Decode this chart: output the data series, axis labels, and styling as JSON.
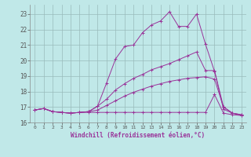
{
  "background_color": "#c0e8e8",
  "grid_color": "#99bbbb",
  "line_color": "#993399",
  "xlabel": "Windchill (Refroidissement éolien,°C)",
  "xlim": [
    -0.5,
    23.5
  ],
  "ylim": [
    16.0,
    23.6
  ],
  "yticks": [
    16,
    17,
    18,
    19,
    20,
    21,
    22,
    23
  ],
  "xticks": [
    0,
    1,
    2,
    3,
    4,
    5,
    6,
    7,
    8,
    9,
    10,
    11,
    12,
    13,
    14,
    15,
    16,
    17,
    18,
    19,
    20,
    21,
    22,
    23
  ],
  "series": [
    {
      "x": [
        0,
        1,
        2,
        3,
        4,
        5,
        6,
        7,
        8,
        9,
        10,
        11,
        12,
        13,
        14,
        15,
        16,
        17,
        18,
        19,
        20,
        21,
        22,
        23
      ],
      "y": [
        16.8,
        16.9,
        16.7,
        16.65,
        16.6,
        16.65,
        16.7,
        17.05,
        18.55,
        20.1,
        20.9,
        21.0,
        21.8,
        22.3,
        22.55,
        23.15,
        22.2,
        22.2,
        23.0,
        21.05,
        19.3,
        16.85,
        16.6,
        16.5
      ]
    },
    {
      "x": [
        0,
        1,
        2,
        3,
        4,
        5,
        6,
        7,
        8,
        9,
        10,
        11,
        12,
        13,
        14,
        15,
        16,
        17,
        18,
        19,
        20,
        21,
        22,
        23
      ],
      "y": [
        16.8,
        16.9,
        16.7,
        16.65,
        16.6,
        16.65,
        16.7,
        17.05,
        17.5,
        18.1,
        18.5,
        18.85,
        19.1,
        19.4,
        19.6,
        19.8,
        20.05,
        20.3,
        20.55,
        19.35,
        19.35,
        17.0,
        16.6,
        16.5
      ]
    },
    {
      "x": [
        0,
        1,
        2,
        3,
        4,
        5,
        6,
        7,
        8,
        9,
        10,
        11,
        12,
        13,
        14,
        15,
        16,
        17,
        18,
        19,
        20,
        21,
        22,
        23
      ],
      "y": [
        16.8,
        16.9,
        16.7,
        16.65,
        16.6,
        16.65,
        16.65,
        16.65,
        16.65,
        16.65,
        16.65,
        16.65,
        16.65,
        16.65,
        16.65,
        16.65,
        16.65,
        16.65,
        16.65,
        16.65,
        17.8,
        16.6,
        16.5,
        16.45
      ]
    },
    {
      "x": [
        0,
        1,
        2,
        3,
        4,
        5,
        6,
        7,
        8,
        9,
        10,
        11,
        12,
        13,
        14,
        15,
        16,
        17,
        18,
        19,
        20,
        21,
        22,
        23
      ],
      "y": [
        16.8,
        16.9,
        16.7,
        16.65,
        16.6,
        16.65,
        16.7,
        16.8,
        17.1,
        17.4,
        17.7,
        17.95,
        18.15,
        18.35,
        18.5,
        18.65,
        18.75,
        18.85,
        18.9,
        18.95,
        18.8,
        17.0,
        16.6,
        16.45
      ]
    }
  ]
}
